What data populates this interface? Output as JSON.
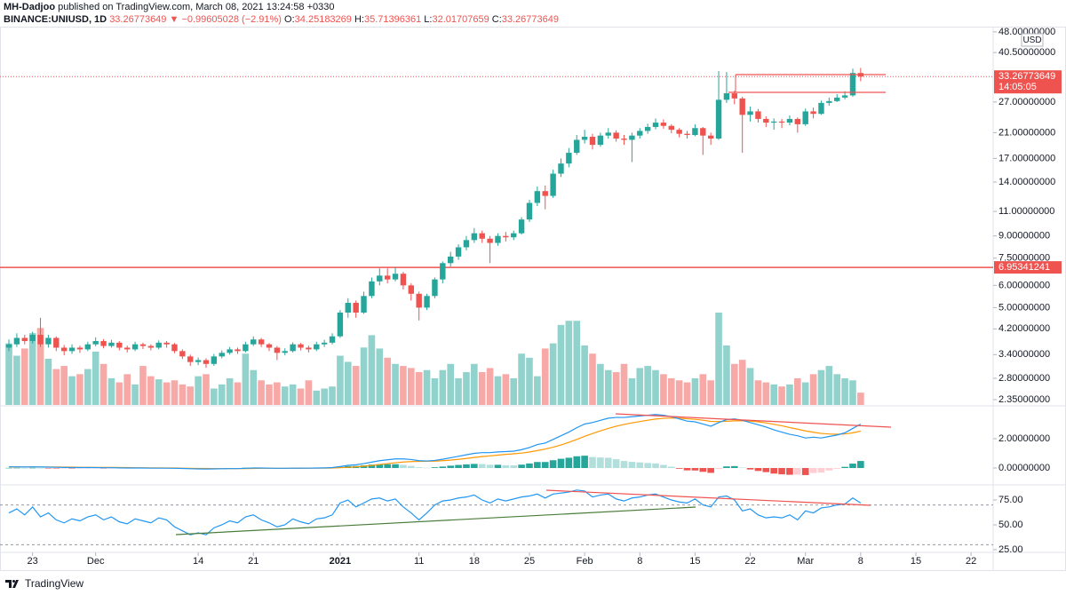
{
  "header": {
    "author": "MH-Dadjoo",
    "published": "published on TradingView.com, March 08, 2021 13:24:58 +0330"
  },
  "footer": {
    "brand": "TradingView"
  },
  "chart_data": {
    "type": "candlestick",
    "legend": {
      "symbol": "BINANCE:UNIUSD, 1D",
      "last": 33.26773649,
      "arrow": "▼",
      "change": "−0.99605028 (−2.91%)",
      "o_label": "O:",
      "o": 34.25183269,
      "h_label": "H:",
      "h": 35.71396361,
      "l_label": "L:",
      "l": 32.01707659,
      "c_label": "C:",
      "c": 33.26773649
    },
    "currency": "USD",
    "last_price": 33.26773649,
    "countdown": "14:05:05",
    "hline": 6.95341241,
    "up_color": "#26a69a",
    "down_color": "#ef5350",
    "log_scale": true,
    "grid": false,
    "xlim": [
      -1.13,
      124.8
    ],
    "xticks": [
      {
        "value": 3,
        "label": "23"
      },
      {
        "value": 11,
        "label": "Dec"
      },
      {
        "value": 24,
        "label": "14"
      },
      {
        "value": 31,
        "label": "21"
      },
      {
        "value": 42,
        "label": "2021"
      },
      {
        "value": 52,
        "label": "11"
      },
      {
        "value": 59,
        "label": "18"
      },
      {
        "value": 66,
        "label": "25"
      },
      {
        "value": 73,
        "label": "Feb"
      },
      {
        "value": 80,
        "label": "8"
      },
      {
        "value": 87,
        "label": "15"
      },
      {
        "value": 94,
        "label": "22"
      },
      {
        "value": 101,
        "label": "Mar"
      },
      {
        "value": 108,
        "label": "8"
      },
      {
        "value": 115,
        "label": "15"
      },
      {
        "value": 122,
        "label": "22"
      }
    ],
    "ylim": [
      2.25,
      50.1
    ],
    "yticks": [
      {
        "value": 48,
        "label": "48.00000000"
      },
      {
        "value": 40.5,
        "label": "40.50000000"
      },
      {
        "value": 27,
        "label": "27.00000000"
      },
      {
        "value": 21,
        "label": "21.00000000"
      },
      {
        "value": 17,
        "label": "17.00000000"
      },
      {
        "value": 14,
        "label": "14.00000000"
      },
      {
        "value": 11,
        "label": "11.00000000"
      },
      {
        "value": 9,
        "label": "9.00000000"
      },
      {
        "value": 7.5,
        "label": "7.50000000"
      },
      {
        "value": 6,
        "label": "6.00000000"
      },
      {
        "value": 5,
        "label": "5.00000000"
      },
      {
        "value": 4.2,
        "label": "4.20000000"
      },
      {
        "value": 3.4,
        "label": "3.40000000"
      },
      {
        "value": 2.8,
        "label": "2.80000000"
      },
      {
        "value": 2.35,
        "label": "2.35000000"
      }
    ],
    "open": [
      3.6,
      3.7,
      3.9,
      3.8,
      4.0,
      3.7,
      3.9,
      3.6,
      3.5,
      3.6,
      3.55,
      3.7,
      3.8,
      3.65,
      3.75,
      3.6,
      3.55,
      3.7,
      3.65,
      3.6,
      3.75,
      3.7,
      3.5,
      3.35,
      3.2,
      3.25,
      3.15,
      3.35,
      3.45,
      3.55,
      3.5,
      3.7,
      3.85,
      3.7,
      3.6,
      3.45,
      3.5,
      3.7,
      3.6,
      3.55,
      3.7,
      3.75,
      3.95,
      4.8,
      5.2,
      4.8,
      5.5,
      6.2,
      6.5,
      6.3,
      6.6,
      6.0,
      5.6,
      5.0,
      5.5,
      6.3,
      7.2,
      7.6,
      8.2,
      8.7,
      9.2,
      8.8,
      8.5,
      9.0,
      8.9,
      9.2,
      10.3,
      11.8,
      13.0,
      12.5,
      15.0,
      16.3,
      17.8,
      19.8,
      20.3,
      19.0,
      20.5,
      21.0,
      20.0,
      19.8,
      20.5,
      21.3,
      22.0,
      22.8,
      22.2,
      21.5,
      20.8,
      20.6,
      21.8,
      20.5,
      20.0,
      27.5,
      29.0,
      27.8,
      24.3,
      25.0,
      23.5,
      22.8,
      23.0,
      22.8,
      23.5,
      22.5,
      25.0,
      24.5,
      26.8,
      27.2,
      28.0,
      28.5,
      34.25183269
    ],
    "high": [
      3.85,
      4.05,
      4.0,
      4.1,
      4.6,
      4.0,
      3.95,
      3.68,
      3.7,
      3.66,
      3.78,
      3.92,
      3.86,
      3.84,
      3.8,
      3.66,
      3.78,
      3.75,
      3.7,
      3.82,
      3.8,
      3.74,
      3.55,
      3.4,
      3.32,
      3.3,
      3.42,
      3.52,
      3.62,
      3.6,
      3.78,
      3.95,
      3.9,
      3.74,
      3.65,
      3.58,
      3.76,
      3.74,
      3.66,
      3.78,
      3.84,
      4.05,
      4.9,
      5.4,
      5.3,
      5.7,
      6.4,
      6.9,
      6.9,
      6.95,
      6.7,
      6.1,
      5.7,
      5.6,
      6.4,
      7.3,
      7.9,
      8.4,
      9.0,
      9.6,
      9.4,
      9.0,
      9.2,
      9.3,
      9.4,
      10.5,
      12.1,
      13.5,
      13.6,
      15.5,
      17.0,
      18.5,
      20.6,
      21.5,
      20.8,
      21.0,
      21.8,
      21.4,
      20.6,
      21.0,
      21.8,
      22.6,
      23.6,
      23.4,
      22.5,
      21.8,
      21.3,
      22.5,
      22.0,
      21.0,
      34.8,
      34.5,
      29.6,
      28.2,
      26.0,
      25.5,
      24.0,
      23.6,
      23.5,
      24.2,
      23.8,
      25.6,
      25.8,
      27.3,
      28.0,
      28.8,
      29.5,
      35.5,
      35.71396361
    ],
    "low": [
      3.5,
      3.62,
      3.7,
      3.72,
      3.62,
      3.6,
      3.5,
      3.38,
      3.42,
      3.45,
      3.5,
      3.64,
      3.58,
      3.6,
      3.52,
      3.46,
      3.5,
      3.56,
      3.52,
      3.55,
      3.6,
      3.44,
      3.28,
      3.1,
      3.12,
      3.05,
      3.1,
      3.3,
      3.4,
      3.42,
      3.46,
      3.65,
      3.62,
      3.5,
      3.25,
      3.38,
      3.46,
      3.52,
      3.46,
      3.5,
      3.62,
      3.7,
      3.9,
      4.6,
      4.6,
      4.75,
      5.4,
      6.0,
      6.1,
      6.2,
      5.8,
      5.3,
      4.5,
      4.9,
      5.4,
      6.1,
      7.0,
      7.4,
      8.0,
      8.5,
      8.5,
      7.2,
      8.3,
      8.6,
      8.7,
      9.1,
      10.1,
      11.5,
      11.2,
      12.3,
      14.6,
      15.8,
      17.5,
      19.2,
      18.3,
      18.7,
      20.0,
      19.5,
      19.0,
      16.5,
      20.0,
      20.8,
      21.6,
      21.7,
      20.9,
      20.2,
      20.0,
      20.4,
      17.5,
      19.0,
      19.8,
      26.8,
      26.5,
      17.8,
      23.0,
      22.8,
      22.0,
      21.5,
      21.8,
      22.3,
      21.0,
      22.2,
      23.6,
      24.3,
      26.2,
      27.0,
      27.6,
      28.2,
      32.01707659
    ],
    "close": [
      3.7,
      3.9,
      3.8,
      4.0,
      3.7,
      3.9,
      3.6,
      3.5,
      3.6,
      3.55,
      3.7,
      3.8,
      3.65,
      3.75,
      3.6,
      3.55,
      3.7,
      3.65,
      3.6,
      3.75,
      3.7,
      3.5,
      3.35,
      3.2,
      3.25,
      3.15,
      3.35,
      3.45,
      3.55,
      3.5,
      3.7,
      3.85,
      3.7,
      3.6,
      3.45,
      3.5,
      3.7,
      3.6,
      3.55,
      3.7,
      3.75,
      3.95,
      4.8,
      5.2,
      4.8,
      5.5,
      6.2,
      6.5,
      6.3,
      6.6,
      6.0,
      5.6,
      5.0,
      5.5,
      6.3,
      7.2,
      7.6,
      8.2,
      8.7,
      9.2,
      8.8,
      8.5,
      9.0,
      8.9,
      9.2,
      10.3,
      11.8,
      13.0,
      12.5,
      15.0,
      16.3,
      17.8,
      19.8,
      20.3,
      19.0,
      20.5,
      21.0,
      20.0,
      19.8,
      20.5,
      21.3,
      22.0,
      22.8,
      22.2,
      21.5,
      20.8,
      20.6,
      21.8,
      20.5,
      20.0,
      27.5,
      29.0,
      27.8,
      24.3,
      25.0,
      23.5,
      22.8,
      23.0,
      22.8,
      23.5,
      22.5,
      25.0,
      24.5,
      26.8,
      27.2,
      28.0,
      28.5,
      34.25183269,
      33.26773649
    ],
    "volume": [
      60,
      48,
      55,
      70,
      75,
      45,
      35,
      38,
      28,
      30,
      35,
      52,
      40,
      26,
      22,
      30,
      20,
      38,
      28,
      25,
      22,
      24,
      20,
      18,
      28,
      30,
      16,
      20,
      26,
      22,
      50,
      34,
      24,
      20,
      22,
      18,
      20,
      16,
      24,
      14,
      16,
      18,
      48,
      42,
      38,
      56,
      68,
      55,
      46,
      40,
      38,
      36,
      32,
      34,
      26,
      34,
      40,
      26,
      32,
      40,
      32,
      36,
      28,
      30,
      26,
      50,
      46,
      28,
      55,
      60,
      78,
      82,
      82,
      58,
      50,
      40,
      34,
      32,
      40,
      26,
      36,
      38,
      34,
      30,
      26,
      24,
      22,
      26,
      30,
      24,
      90,
      58,
      40,
      44,
      36,
      24,
      22,
      20,
      18,
      20,
      26,
      22,
      30,
      34,
      38,
      30,
      26,
      24,
      12
    ],
    "macd": {
      "line_color": "#2196f3",
      "signal_color": "#ff9800",
      "ylim": [
        -1.09,
        4.18
      ],
      "yticks": [
        {
          "value": 2,
          "label": "2.00000000"
        },
        {
          "value": 0,
          "label": "0.00000000"
        }
      ],
      "line": [
        0.08,
        0.08,
        0.07,
        0.08,
        0.07,
        0.06,
        0.05,
        0.04,
        0.03,
        0.03,
        0.03,
        0.03,
        0.02,
        0.02,
        0.01,
        0.0,
        0.0,
        0.0,
        -0.01,
        -0.01,
        -0.01,
        -0.02,
        -0.03,
        -0.05,
        -0.06,
        -0.07,
        -0.06,
        -0.05,
        -0.04,
        -0.04,
        -0.02,
        0.0,
        0.0,
        -0.01,
        -0.02,
        -0.02,
        -0.01,
        -0.01,
        -0.01,
        0.0,
        0.01,
        0.03,
        0.1,
        0.18,
        0.22,
        0.3,
        0.4,
        0.5,
        0.56,
        0.62,
        0.62,
        0.58,
        0.5,
        0.48,
        0.52,
        0.6,
        0.7,
        0.8,
        0.9,
        1.0,
        1.05,
        1.05,
        1.1,
        1.12,
        1.15,
        1.25,
        1.4,
        1.6,
        1.7,
        1.95,
        2.2,
        2.45,
        2.75,
        3.0,
        3.1,
        3.25,
        3.4,
        3.45,
        3.45,
        3.5,
        3.55,
        3.6,
        3.65,
        3.6,
        3.5,
        3.35,
        3.2,
        3.15,
        3.0,
        2.85,
        3.1,
        3.3,
        3.35,
        3.25,
        3.1,
        2.95,
        2.8,
        2.6,
        2.45,
        2.3,
        2.2,
        2.05,
        2.1,
        2.05,
        2.15,
        2.25,
        2.4,
        2.7,
        3.0
      ],
      "signal": [
        0.07,
        0.07,
        0.07,
        0.07,
        0.07,
        0.07,
        0.07,
        0.06,
        0.06,
        0.05,
        0.05,
        0.04,
        0.04,
        0.04,
        0.03,
        0.03,
        0.02,
        0.02,
        0.01,
        0.01,
        0.0,
        0.0,
        -0.01,
        -0.02,
        -0.03,
        -0.03,
        -0.04,
        -0.04,
        -0.04,
        -0.04,
        -0.04,
        -0.03,
        -0.02,
        -0.02,
        -0.02,
        -0.02,
        -0.02,
        -0.02,
        -0.01,
        -0.01,
        -0.01,
        0.0,
        0.02,
        0.05,
        0.08,
        0.12,
        0.17,
        0.24,
        0.3,
        0.36,
        0.41,
        0.44,
        0.45,
        0.46,
        0.47,
        0.5,
        0.54,
        0.59,
        0.65,
        0.72,
        0.78,
        0.83,
        0.88,
        0.93,
        0.97,
        1.02,
        1.09,
        1.19,
        1.29,
        1.42,
        1.57,
        1.75,
        1.95,
        2.16,
        2.35,
        2.53,
        2.7,
        2.85,
        2.97,
        3.08,
        3.17,
        3.26,
        3.34,
        3.39,
        3.41,
        3.4,
        3.36,
        3.32,
        3.26,
        3.18,
        3.17,
        3.19,
        3.22,
        3.22,
        3.2,
        3.15,
        3.08,
        2.98,
        2.88,
        2.76,
        2.65,
        2.53,
        2.44,
        2.36,
        2.32,
        2.3,
        2.32,
        2.4,
        2.52
      ],
      "histogram": [
        0.01,
        0.01,
        0,
        0.01,
        0,
        -0.01,
        -0.02,
        -0.02,
        -0.03,
        -0.02,
        -0.02,
        -0.01,
        -0.02,
        -0.02,
        -0.02,
        -0.03,
        -0.02,
        -0.02,
        -0.02,
        -0.02,
        -0.01,
        -0.02,
        -0.02,
        -0.03,
        -0.03,
        -0.04,
        -0.02,
        -0.01,
        0,
        0,
        0.02,
        0.03,
        0.02,
        0.01,
        0,
        0,
        0.01,
        0.01,
        0,
        0.01,
        0.02,
        0.03,
        0.08,
        0.13,
        0.14,
        0.18,
        0.23,
        0.26,
        0.26,
        0.26,
        0.21,
        0.14,
        0.05,
        0.02,
        0.05,
        0.1,
        0.16,
        0.21,
        0.25,
        0.28,
        0.27,
        0.22,
        0.22,
        0.19,
        0.18,
        0.23,
        0.31,
        0.41,
        0.41,
        0.53,
        0.63,
        0.7,
        0.8,
        0.84,
        0.75,
        0.72,
        0.7,
        0.6,
        0.48,
        0.42,
        0.38,
        0.34,
        0.31,
        0.21,
        0.09,
        -0.05,
        -0.16,
        -0.17,
        -0.26,
        -0.33,
        -0.07,
        0.11,
        0.13,
        0.03,
        -0.1,
        -0.2,
        -0.28,
        -0.38,
        -0.43,
        -0.46,
        -0.45,
        -0.48,
        -0.34,
        -0.31,
        -0.17,
        -0.05,
        0.08,
        0.3,
        0.48
      ]
    },
    "rsi": {
      "color": "#2196f3",
      "ylim": [
        22.3,
        89.3
      ],
      "yticks": [
        {
          "value": 75,
          "label": "75.00"
        },
        {
          "value": 50,
          "label": "50.00"
        },
        {
          "value": 25,
          "label": "25.00"
        }
      ],
      "levels": [
        70,
        30
      ],
      "values": [
        62,
        66,
        60,
        68,
        58,
        62,
        55,
        52,
        56,
        54,
        58,
        60,
        55,
        58,
        53,
        51,
        56,
        54,
        52,
        57,
        55,
        48,
        44,
        40,
        42,
        40,
        47,
        50,
        54,
        52,
        58,
        60,
        55,
        52,
        48,
        50,
        56,
        53,
        51,
        56,
        57,
        60,
        72,
        75,
        68,
        72,
        76,
        77,
        74,
        76,
        68,
        62,
        55,
        62,
        70,
        74,
        75,
        77,
        78,
        80,
        75,
        72,
        76,
        74,
        76,
        78,
        79,
        81,
        77,
        81,
        82,
        83,
        85,
        84,
        78,
        80,
        81,
        76,
        74,
        77,
        78,
        80,
        81,
        78,
        75,
        73,
        72,
        76,
        70,
        68,
        78,
        79,
        75,
        64,
        66,
        60,
        57,
        58,
        57,
        60,
        55,
        64,
        62,
        67,
        68,
        70,
        71,
        77,
        72
      ]
    }
  }
}
